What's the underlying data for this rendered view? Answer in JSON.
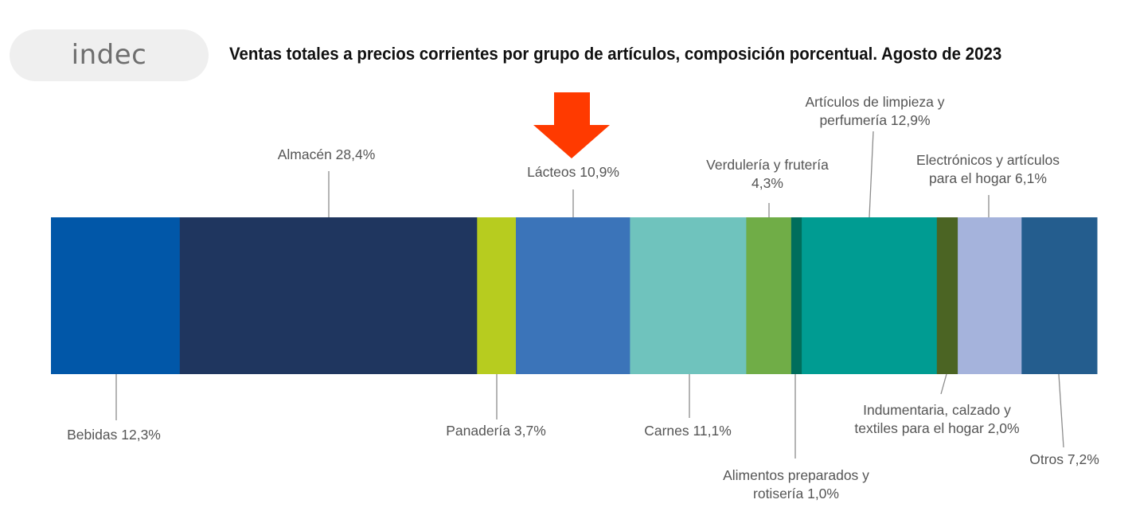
{
  "header": {
    "logo_text": "indec",
    "title": "Ventas totales a precios corrientes por grupo de artículos, composición porcentual. Agosto de 2023"
  },
  "annotation": {
    "icon": "down-arrow-icon",
    "color": "#ff3a00"
  },
  "chart_data": {
    "type": "bar",
    "orientation": "horizontal-stacked-100",
    "title": "Ventas totales a precios corrientes por grupo de artículos, composición porcentual. Agosto de 2023",
    "unit": "%",
    "categories": [
      "Bebidas",
      "Almacén",
      "Panadería",
      "Lácteos",
      "Carnes",
      "Verdulería y frutería",
      "Alimentos preparados y rotisería",
      "Artículos de limpieza y perfumería",
      "Indumentaria, calzado y textiles para el hogar",
      "Electrónicos y artículos para el hogar",
      "Otros"
    ],
    "values": [
      12.3,
      28.4,
      3.7,
      10.9,
      11.1,
      4.3,
      1.0,
      12.9,
      2.0,
      6.1,
      7.2
    ],
    "colors": [
      "#0157a8",
      "#1f365f",
      "#b7cc1f",
      "#3b74b9",
      "#6fc3bd",
      "#70ad47",
      "#006e5c",
      "#009c92",
      "#4b6423",
      "#a5b3dc",
      "#245d8e"
    ],
    "labels": [
      [
        "Bebidas 12,3%"
      ],
      [
        "Almacén 28,4%"
      ],
      [
        "Panadería 3,7%"
      ],
      [
        "Lácteos 10,9%"
      ],
      [
        "Carnes 11,1%"
      ],
      [
        "Verdulería y frutería",
        "4,3%"
      ],
      [
        "Alimentos preparados y",
        "rotisería 1,0%"
      ],
      [
        "Artículos de limpieza y",
        "perfumería 12,9%"
      ],
      [
        "Indumentaria, calzado y",
        "textiles para el hogar 2,0%"
      ],
      [
        "Electrónicos y artículos",
        "para el hogar 6,1%"
      ],
      [
        "Otros 7,2%"
      ]
    ],
    "label_positions": [
      "below",
      "above",
      "below",
      "above",
      "below",
      "above",
      "below",
      "above",
      "below",
      "above",
      "below"
    ]
  }
}
